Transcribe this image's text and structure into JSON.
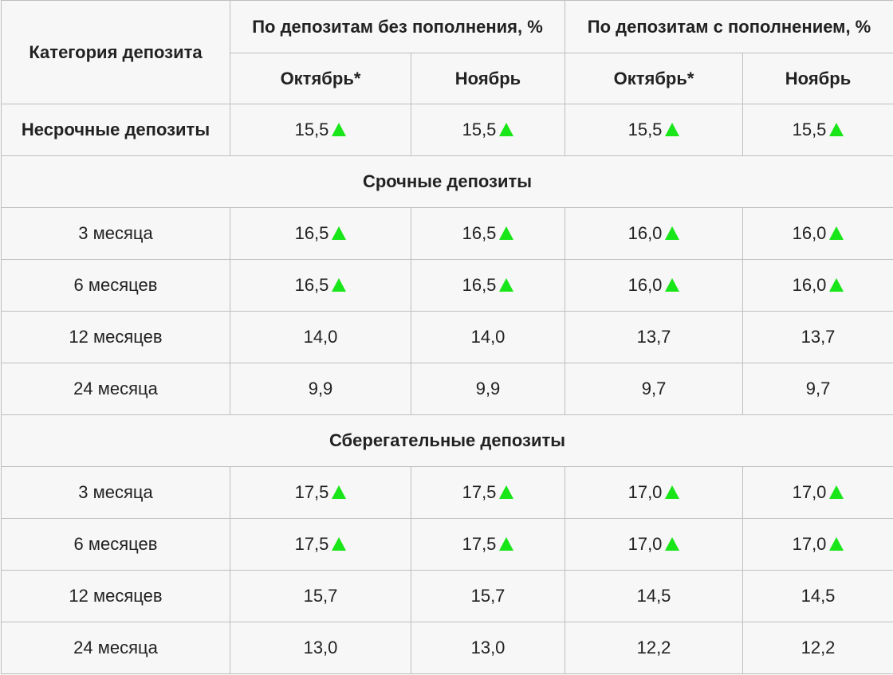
{
  "header": {
    "category": "Категория депозита",
    "group_without": "По депозитам без пополнения, %",
    "group_with": "По депозитам с пополнением, %",
    "months": [
      "Октябрь*",
      "Ноябрь",
      "Октябрь*",
      "Ноябрь"
    ]
  },
  "indicator": {
    "name": "triangle-up-icon",
    "color": "#19e619"
  },
  "rows": [
    {
      "type": "data",
      "label": "Несрочные депозиты",
      "bold": true,
      "values": [
        "15,5",
        "15,5",
        "15,5",
        "15,5"
      ],
      "up": [
        true,
        true,
        true,
        true
      ]
    },
    {
      "type": "section",
      "label": "Срочные депозиты"
    },
    {
      "type": "data",
      "label": "3 месяца",
      "values": [
        "16,5",
        "16,5",
        "16,0",
        "16,0"
      ],
      "up": [
        true,
        true,
        true,
        true
      ]
    },
    {
      "type": "data",
      "label": "6 месяцев",
      "values": [
        "16,5",
        "16,5",
        "16,0",
        "16,0"
      ],
      "up": [
        true,
        true,
        true,
        true
      ]
    },
    {
      "type": "data",
      "label": "12 месяцев",
      "values": [
        "14,0",
        "14,0",
        "13,7",
        "13,7"
      ],
      "up": [
        false,
        false,
        false,
        false
      ]
    },
    {
      "type": "data",
      "label": "24 месяца",
      "values": [
        "9,9",
        "9,9",
        "9,7",
        "9,7"
      ],
      "up": [
        false,
        false,
        false,
        false
      ]
    },
    {
      "type": "section",
      "label": "Сберегательные депозиты"
    },
    {
      "type": "data",
      "label": "3 месяца",
      "values": [
        "17,5",
        "17,5",
        "17,0",
        "17,0"
      ],
      "up": [
        true,
        true,
        true,
        true
      ]
    },
    {
      "type": "data",
      "label": "6 месяцев",
      "values": [
        "17,5",
        "17,5",
        "17,0",
        "17,0"
      ],
      "up": [
        true,
        true,
        true,
        true
      ]
    },
    {
      "type": "data",
      "label": "12 месяцев",
      "values": [
        "15,7",
        "15,7",
        "14,5",
        "14,5"
      ],
      "up": [
        false,
        false,
        false,
        false
      ]
    },
    {
      "type": "data",
      "label": "24 месяца",
      "values": [
        "13,0",
        "13,0",
        "12,2",
        "12,2"
      ],
      "up": [
        false,
        false,
        false,
        false
      ]
    }
  ]
}
